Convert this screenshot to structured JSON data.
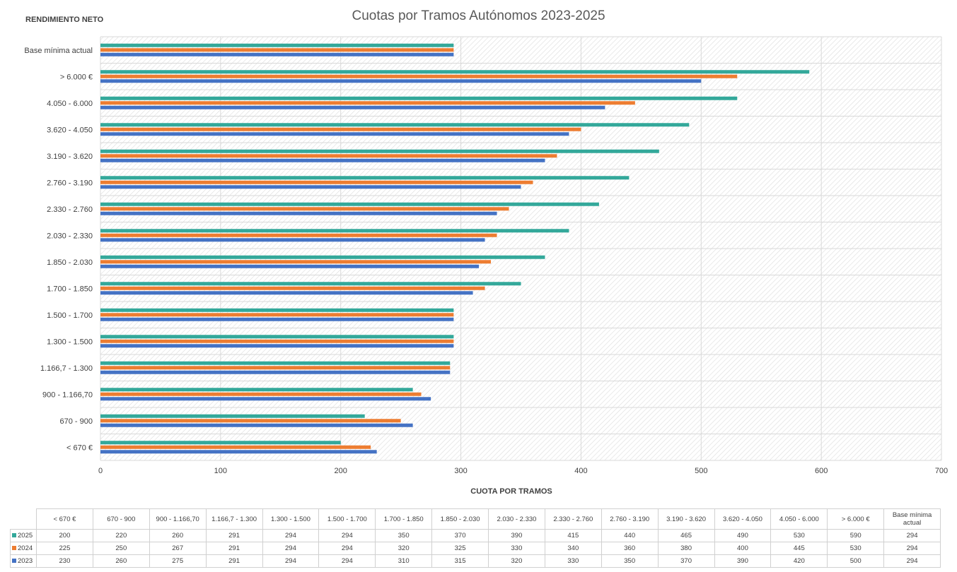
{
  "chart_data": {
    "type": "bar",
    "orientation": "horizontal",
    "title": "Cuotas por Tramos Autónomos 2023-2025",
    "ylabel": "RENDIMIENTO NETO",
    "xlabel": "CUOTA POR TRAMOS",
    "xlim": [
      0,
      700
    ],
    "xticks": [
      0,
      100,
      200,
      300,
      400,
      500,
      600,
      700
    ],
    "grid": true,
    "legend": "data-table",
    "categories": [
      "< 670 €",
      "670 - 900",
      "900 - 1.166,70",
      "1.166,7 - 1.300",
      "1.300 - 1.500",
      "1.500 - 1.700",
      "1.700 - 1.850",
      "1.850 - 2.030",
      "2.030 - 2.330",
      "2.330 - 2.760",
      "2.760 - 3.190",
      "3.190 - 3.620",
      "3.620 - 4.050",
      "4.050 - 6.000",
      "> 6.000 €",
      "Base mínima actual"
    ],
    "table_headers": [
      "< 670 €",
      "670 - 900",
      "900 - 1.166,70",
      "1.166,7 - 1.300",
      "1.300 - 1.500",
      "1.500 - 1.700",
      "1.700 - 1.850",
      "1.850 - 2.030",
      "2.030 - 2.330",
      "2.330 - 2.760",
      "2.760 - 3.190",
      "3.190 - 3.620",
      "3.620 - 4.050",
      "4.050 - 6.000",
      "> 6.000 €",
      "Base mínima actual"
    ],
    "series": [
      {
        "name": "2025",
        "color": "#33a89a",
        "values": [
          200,
          220,
          260,
          291,
          294,
          294,
          350,
          370,
          390,
          415,
          440,
          465,
          490,
          530,
          590,
          294
        ]
      },
      {
        "name": "2024",
        "color": "#ed7d31",
        "values": [
          225,
          250,
          267,
          291,
          294,
          294,
          320,
          325,
          330,
          340,
          360,
          380,
          400,
          445,
          530,
          294
        ]
      },
      {
        "name": "2023",
        "color": "#4472c4",
        "values": [
          230,
          260,
          275,
          291,
          294,
          294,
          310,
          315,
          320,
          330,
          350,
          370,
          390,
          420,
          500,
          294
        ]
      }
    ]
  }
}
